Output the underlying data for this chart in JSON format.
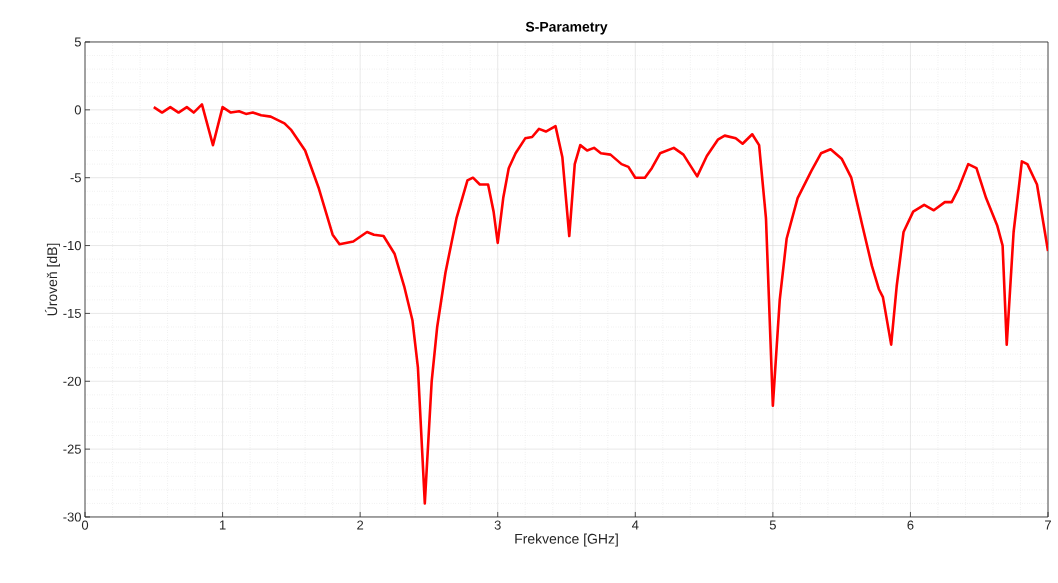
{
  "chart_data": {
    "type": "line",
    "title": "S-Parametry",
    "xlabel": "Frekvence [GHz]",
    "ylabel": "Úroveň [dB]",
    "xlim": [
      0,
      7
    ],
    "ylim": [
      -30,
      5
    ],
    "xticks": [
      0,
      1,
      2,
      3,
      4,
      5,
      6,
      7
    ],
    "yticks": [
      -30,
      -25,
      -20,
      -15,
      -10,
      -5,
      0,
      5
    ],
    "grid": true,
    "series": [
      {
        "color": "#ff0000",
        "x": [
          0.5,
          0.56,
          0.62,
          0.68,
          0.74,
          0.79,
          0.85,
          0.93,
          1.0,
          1.06,
          1.12,
          1.17,
          1.22,
          1.28,
          1.35,
          1.45,
          1.5,
          1.6,
          1.7,
          1.8,
          1.85,
          1.95,
          2.05,
          2.1,
          2.17,
          2.25,
          2.32,
          2.38,
          2.42,
          2.47,
          2.52,
          2.56,
          2.62,
          2.7,
          2.78,
          2.82,
          2.87,
          2.93,
          2.97,
          3.0,
          3.04,
          3.08,
          3.13,
          3.2,
          3.25,
          3.3,
          3.35,
          3.42,
          3.47,
          3.52,
          3.56,
          3.6,
          3.65,
          3.7,
          3.75,
          3.82,
          3.9,
          3.95,
          4.0,
          4.07,
          4.12,
          4.18,
          4.28,
          4.35,
          4.45,
          4.52,
          4.6,
          4.65,
          4.73,
          4.78,
          4.85,
          4.9,
          4.95,
          5.0,
          5.05,
          5.1,
          5.18,
          5.28,
          5.35,
          5.42,
          5.5,
          5.57,
          5.65,
          5.72,
          5.77,
          5.8,
          5.86,
          5.9,
          5.95,
          6.02,
          6.1,
          6.17,
          6.25,
          6.3,
          6.35,
          6.42,
          6.48,
          6.55,
          6.63,
          6.67,
          6.7,
          6.75,
          6.81,
          6.85,
          6.92,
          7.0
        ],
        "values": [
          0.2,
          -0.2,
          0.2,
          -0.2,
          0.2,
          -0.2,
          0.4,
          -2.6,
          0.2,
          -0.2,
          -0.1,
          -0.3,
          -0.2,
          -0.4,
          -0.5,
          -1.0,
          -1.5,
          -3.0,
          -5.8,
          -9.2,
          -9.9,
          -9.7,
          -9.0,
          -9.2,
          -9.3,
          -10.6,
          -13,
          -15.5,
          -19,
          -29,
          -20,
          -16,
          -12,
          -8,
          -5.2,
          -5.0,
          -5.5,
          -5.5,
          -7.5,
          -9.8,
          -6.5,
          -4.3,
          -3.2,
          -2.1,
          -2.0,
          -1.4,
          -1.6,
          -1.2,
          -3.5,
          -9.3,
          -4,
          -2.6,
          -3.0,
          -2.8,
          -3.2,
          -3.3,
          -4.0,
          -4.2,
          -5.0,
          -5.0,
          -4.3,
          -3.2,
          -2.8,
          -3.3,
          -4.9,
          -3.4,
          -2.2,
          -1.9,
          -2.1,
          -2.5,
          -1.8,
          -2.6,
          -8,
          -21.8,
          -14,
          -9.5,
          -6.5,
          -4.5,
          -3.2,
          -2.9,
          -3.6,
          -5.0,
          -8.5,
          -11.5,
          -13.2,
          -13.8,
          -17.3,
          -13,
          -9,
          -7.5,
          -7.0,
          -7.4,
          -6.8,
          -6.8,
          -5.8,
          -4.0,
          -4.3,
          -6.5,
          -8.5,
          -10,
          -17.3,
          -9,
          -3.8,
          -4.0,
          -5.5,
          -10.4
        ]
      }
    ]
  }
}
